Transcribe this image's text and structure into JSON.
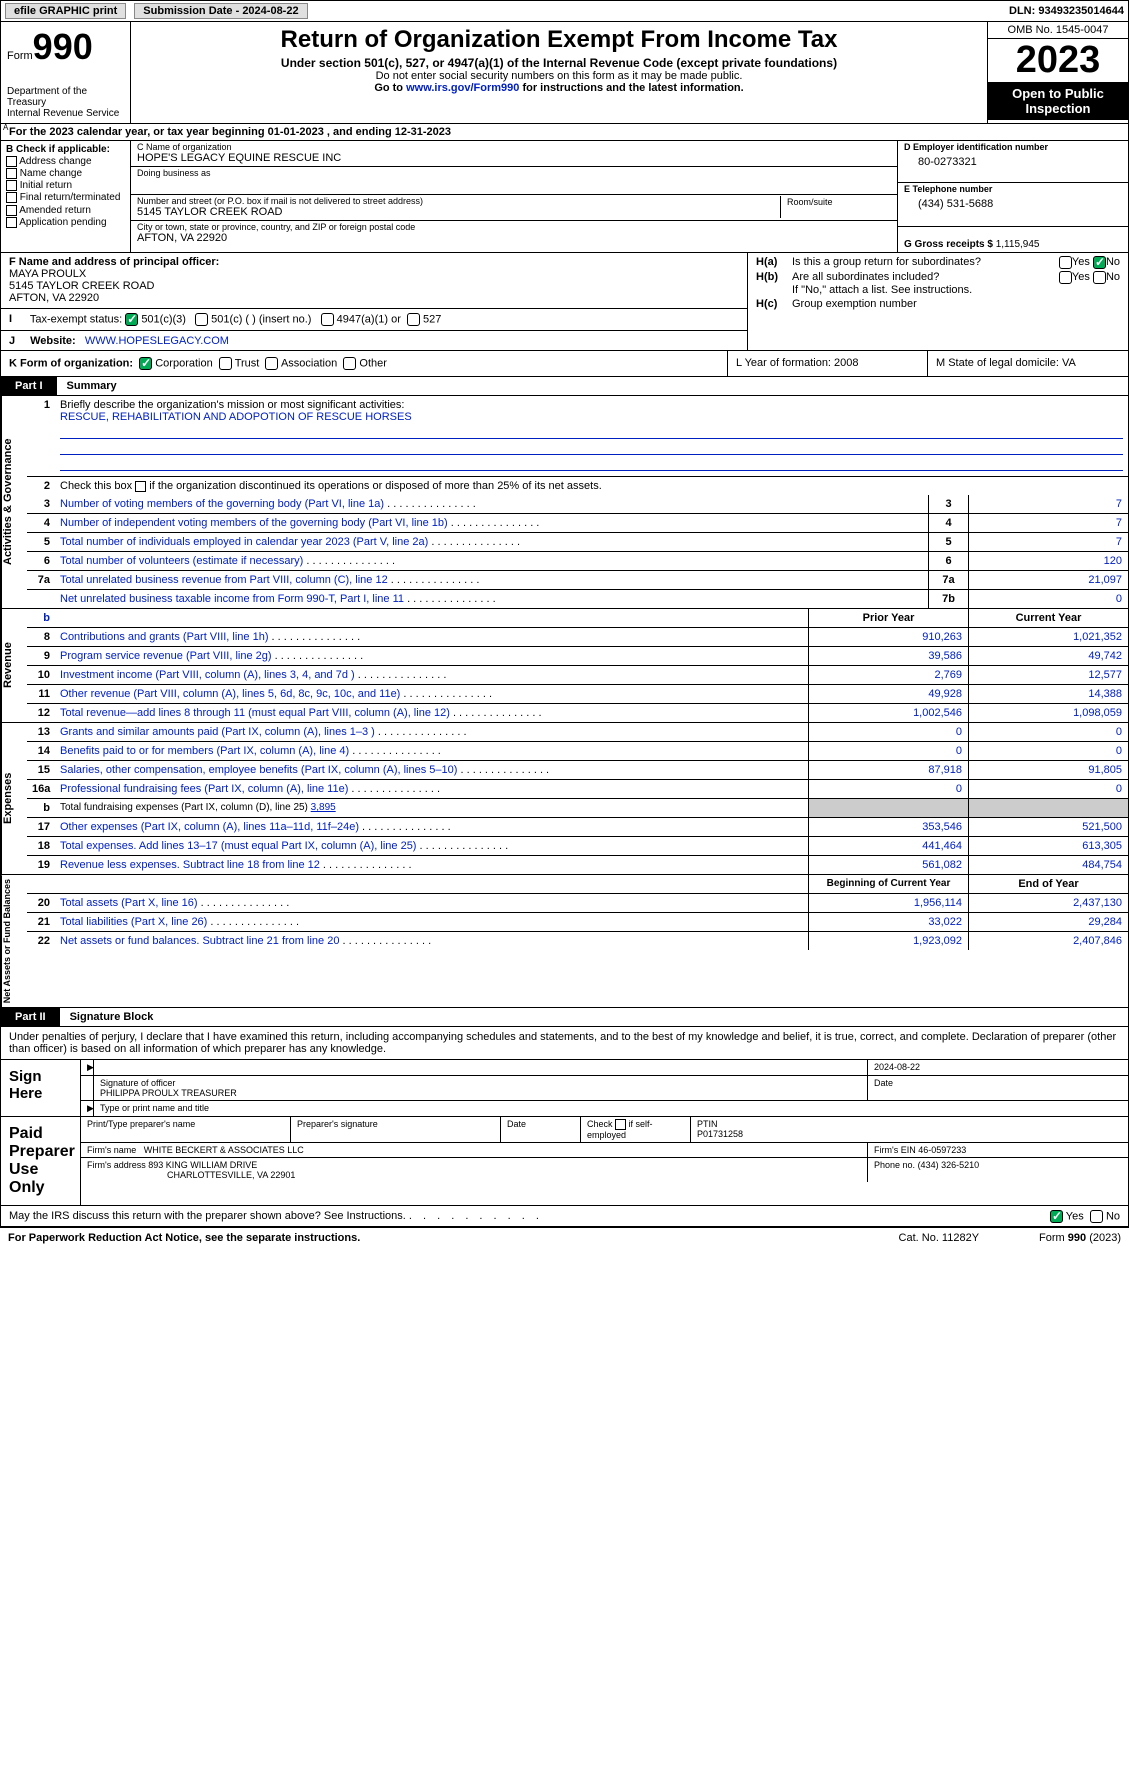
{
  "topbar": {
    "efile": "efile GRAPHIC print",
    "subdate_lbl": "Submission Date - 2024-08-22",
    "dln": "DLN: 93493235014644"
  },
  "header": {
    "formword": "Form",
    "formnum": "990",
    "dept": "Department of the Treasury\nInternal Revenue Service",
    "title": "Return of Organization Exempt From Income Tax",
    "sub1": "Under section 501(c), 527, or 4947(a)(1) of the Internal Revenue Code (except private foundations)",
    "sub2": "Do not enter social security numbers on this form as it may be made public.",
    "sub3a": "Go to ",
    "sub3link": "www.irs.gov/Form990",
    "sub3b": " for instructions and the latest information.",
    "omb": "OMB No. 1545-0047",
    "year": "2023",
    "insp": "Open to Public Inspection"
  },
  "lineA": {
    "prefix": "A",
    "text": "For the 2023 calendar year, or tax year beginning 01-01-2023   , and ending 12-31-2023"
  },
  "B": {
    "hdr": "B Check if applicable:",
    "items": [
      "Address change",
      "Name change",
      "Initial return",
      "Final return/terminated",
      "Amended return",
      "Application pending"
    ]
  },
  "C": {
    "name_lbl": "C Name of organization",
    "name": "HOPE'S LEGACY EQUINE RESCUE INC",
    "dba_lbl": "Doing business as",
    "dba": "",
    "addr_lbl": "Number and street (or P.O. box if mail is not delivered to street address)",
    "addr": "5145 TAYLOR CREEK ROAD",
    "room_lbl": "Room/suite",
    "city_lbl": "City or town, state or province, country, and ZIP or foreign postal code",
    "city": "AFTON, VA  22920"
  },
  "D": {
    "lbl": "D Employer identification number",
    "val": "80-0273321"
  },
  "E": {
    "lbl": "E Telephone number",
    "val": "(434) 531-5688"
  },
  "G": {
    "lbl": "G Gross receipts $",
    "val": "1,115,945"
  },
  "F": {
    "lbl": "F  Name and address of principal officer:",
    "name": "MAYA PROULX",
    "addr": "5145 TAYLOR CREEK ROAD",
    "city": "AFTON, VA  22920"
  },
  "I": {
    "lbl": "Tax-exempt status:",
    "i1": "501(c)(3)",
    "i2": "501(c) (  ) (insert no.)",
    "i3": "4947(a)(1) or",
    "i4": "527"
  },
  "J": {
    "lbl": "Website:",
    "val": "WWW.HOPESLEGACY.COM"
  },
  "H": {
    "a_lbl": "H(a)",
    "a_txt": "Is this a group return for subordinates?",
    "b_lbl": "H(b)",
    "b_txt": "Are all subordinates included?",
    "b_note": "If \"No,\" attach a list. See instructions.",
    "c_lbl": "H(c)",
    "c_txt": "Group exemption number",
    "yes": "Yes",
    "no": "No"
  },
  "K": {
    "lbl": "K Form of organization:",
    "opts": [
      "Corporation",
      "Trust",
      "Association",
      "Other"
    ],
    "L": "L Year of formation: 2008",
    "M": "M State of legal domicile: VA"
  },
  "partI": {
    "name": "Part I",
    "title": "Summary"
  },
  "summary": {
    "gov": {
      "tab": "Activities & Governance",
      "l1": "Briefly describe the organization's mission or most significant activities:",
      "l1v": "RESCUE, REHABILITATION AND ADOPOTION OF RESCUE HORSES",
      "l2": "Check this box ",
      "l2b": " if the organization discontinued its operations or disposed of more than 25% of its net assets.",
      "l3": "Number of voting members of the governing body (Part VI, line 1a)",
      "l3v": "7",
      "l4": "Number of independent voting members of the governing body (Part VI, line 1b)",
      "l4v": "7",
      "l5": "Total number of individuals employed in calendar year 2023 (Part V, line 2a)",
      "l5v": "7",
      "l6": "Total number of volunteers (estimate if necessary)",
      "l6v": "120",
      "l7a": "Total unrelated business revenue from Part VIII, column (C), line 12",
      "l7av": "21,097",
      "l7b": "Net unrelated business taxable income from Form 990-T, Part I, line 11",
      "l7bv": "0"
    },
    "rev": {
      "tab": "Revenue",
      "hdr_prior": "Prior Year",
      "hdr_curr": "Current Year",
      "r": [
        {
          "n": "8",
          "t": "Contributions and grants (Part VIII, line 1h)",
          "p": "910,263",
          "c": "1,021,352"
        },
        {
          "n": "9",
          "t": "Program service revenue (Part VIII, line 2g)",
          "p": "39,586",
          "c": "49,742"
        },
        {
          "n": "10",
          "t": "Investment income (Part VIII, column (A), lines 3, 4, and 7d )",
          "p": "2,769",
          "c": "12,577"
        },
        {
          "n": "11",
          "t": "Other revenue (Part VIII, column (A), lines 5, 6d, 8c, 9c, 10c, and 11e)",
          "p": "49,928",
          "c": "14,388"
        },
        {
          "n": "12",
          "t": "Total revenue—add lines 8 through 11 (must equal Part VIII, column (A), line 12)",
          "p": "1,002,546",
          "c": "1,098,059"
        }
      ]
    },
    "exp": {
      "tab": "Expenses",
      "r": [
        {
          "n": "13",
          "t": "Grants and similar amounts paid (Part IX, column (A), lines 1–3 )",
          "p": "0",
          "c": "0"
        },
        {
          "n": "14",
          "t": "Benefits paid to or for members (Part IX, column (A), line 4)",
          "p": "0",
          "c": "0"
        },
        {
          "n": "15",
          "t": "Salaries, other compensation, employee benefits (Part IX, column (A), lines 5–10)",
          "p": "87,918",
          "c": "91,805"
        },
        {
          "n": "16a",
          "t": "Professional fundraising fees (Part IX, column (A), line 11e)",
          "p": "0",
          "c": "0"
        },
        {
          "n": "b",
          "t": "Total fundraising expenses (Part IX, column (D), line 25) ",
          "u": "3,895",
          "grey": true
        },
        {
          "n": "17",
          "t": "Other expenses (Part IX, column (A), lines 11a–11d, 11f–24e)",
          "p": "353,546",
          "c": "521,500"
        },
        {
          "n": "18",
          "t": "Total expenses. Add lines 13–17 (must equal Part IX, column (A), line 25)",
          "p": "441,464",
          "c": "613,305"
        },
        {
          "n": "19",
          "t": "Revenue less expenses. Subtract line 18 from line 12",
          "p": "561,082",
          "c": "484,754"
        }
      ]
    },
    "net": {
      "tab": "Net Assets or Fund Balances",
      "hdr_beg": "Beginning of Current Year",
      "hdr_end": "End of Year",
      "r": [
        {
          "n": "20",
          "t": "Total assets (Part X, line 16)",
          "p": "1,956,114",
          "c": "2,437,130"
        },
        {
          "n": "21",
          "t": "Total liabilities (Part X, line 26)",
          "p": "33,022",
          "c": "29,284"
        },
        {
          "n": "22",
          "t": "Net assets or fund balances. Subtract line 21 from line 20",
          "p": "1,923,092",
          "c": "2,407,846"
        }
      ]
    }
  },
  "partII": {
    "name": "Part II",
    "title": "Signature Block",
    "txt": "Under penalties of perjury, I declare that I have examined this return, including accompanying schedules and statements, and to the best of my knowledge and belief, it is true, correct, and complete. Declaration of preparer (other than officer) is based on all information of which preparer has any knowledge."
  },
  "sign": {
    "here": "Sign Here",
    "date": "2024-08-22",
    "sig_lbl": "Signature of officer",
    "date_lbl": "Date",
    "officer": "PHILIPPA PROULX  TREASURER",
    "typelbl": "Type or print name and title"
  },
  "paid": {
    "lbl": "Paid Preparer Use Only",
    "h1": "Print/Type preparer's name",
    "h2": "Preparer's signature",
    "h3": "Date",
    "h4a": "Check",
    "h4b": "if self-employed",
    "h5": "PTIN",
    "ptin": "P01731258",
    "firm_lbl": "Firm's name",
    "firm": "WHITE BECKERT & ASSOCIATES LLC",
    "fein_lbl": "Firm's EIN",
    "fein": "46-0597233",
    "addr_lbl": "Firm's address",
    "addr1": "893 KING WILLIAM DRIVE",
    "addr2": "CHARLOTTESVILLE, VA  22901",
    "phone_lbl": "Phone no.",
    "phone": "(434) 326-5210"
  },
  "mayirs": {
    "txt": "May the IRS discuss this return with the preparer shown above? See Instructions.",
    "yes": "Yes",
    "no": "No"
  },
  "footer": {
    "fpra": "For Paperwork Reduction Act Notice, see the separate instructions.",
    "cat": "Cat. No. 11282Y",
    "form": "Form 990 (2023)"
  },
  "colors": {
    "link": "#0020c2",
    "partbg": "#000000",
    "greycell": "#cccccc"
  }
}
